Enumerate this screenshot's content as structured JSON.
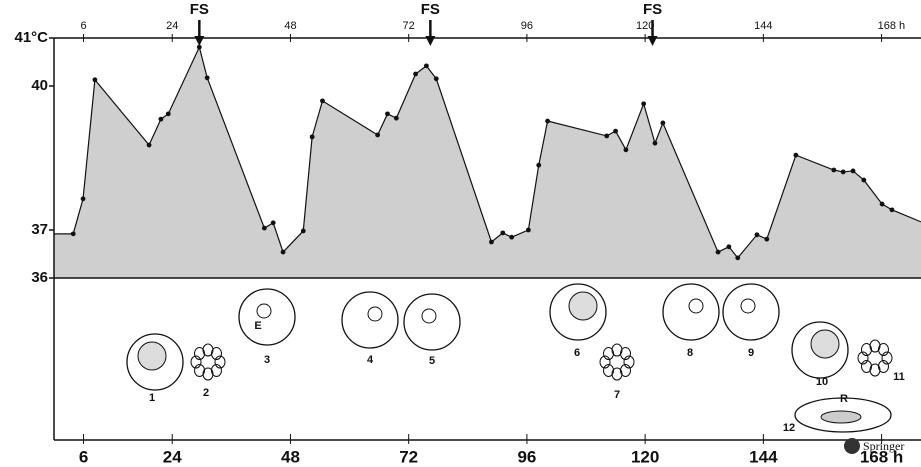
{
  "chart_data": {
    "type": "area",
    "x": [
      0,
      3.9,
      5.9,
      8.3,
      19.3,
      21.7,
      23.2,
      29.5,
      31.1,
      42.7,
      44.5,
      46.5,
      50.6,
      52.4,
      54.5,
      65.7,
      67.7,
      69.5,
      73.4,
      75.6,
      77.6,
      88.8,
      91.1,
      92.9,
      96.3,
      98.4,
      100.2,
      112.2,
      114.0,
      116.1,
      119.7,
      122.0,
      123.6,
      134.8,
      137.0,
      138.8,
      142.7,
      144.7,
      150.6,
      158.3,
      160.2,
      162.2,
      164.4,
      168.1,
      170.1,
      176
    ],
    "values": [
      36.92,
      36.92,
      37.65,
      40.13,
      38.77,
      39.31,
      39.42,
      40.81,
      40.17,
      37.04,
      37.15,
      36.54,
      36.98,
      38.94,
      39.69,
      38.98,
      39.42,
      39.33,
      40.25,
      40.42,
      40.15,
      36.75,
      36.94,
      36.85,
      37.0,
      38.35,
      39.27,
      38.96,
      39.06,
      38.67,
      39.63,
      38.81,
      39.23,
      36.54,
      36.65,
      36.42,
      36.9,
      36.81,
      38.56,
      38.25,
      38.21,
      38.23,
      38.04,
      37.54,
      37.42,
      37.17
    ],
    "color": "#cfcfcf",
    "xlim": [
      0,
      176
    ],
    "xticks": [
      6,
      24,
      48,
      72,
      96,
      120,
      144,
      {
        "value": 168,
        "label": "168 h"
      }
    ],
    "ylim": [
      36,
      41
    ],
    "yticks": [
      36,
      37,
      40,
      {
        "value": 41,
        "label": "41°C"
      }
    ],
    "annotations": [
      {
        "x": 29.5,
        "label": "FS"
      },
      {
        "x": 76.4,
        "label": "FS"
      },
      {
        "x": 121.5,
        "label": "FS"
      }
    ],
    "stage_labels": [
      "1",
      "2",
      "3",
      "4",
      "5",
      "6",
      "7",
      "8",
      "9",
      "10",
      "11",
      "12"
    ],
    "cell_labels": [
      "E",
      "R"
    ],
    "watermark": "Springer"
  }
}
